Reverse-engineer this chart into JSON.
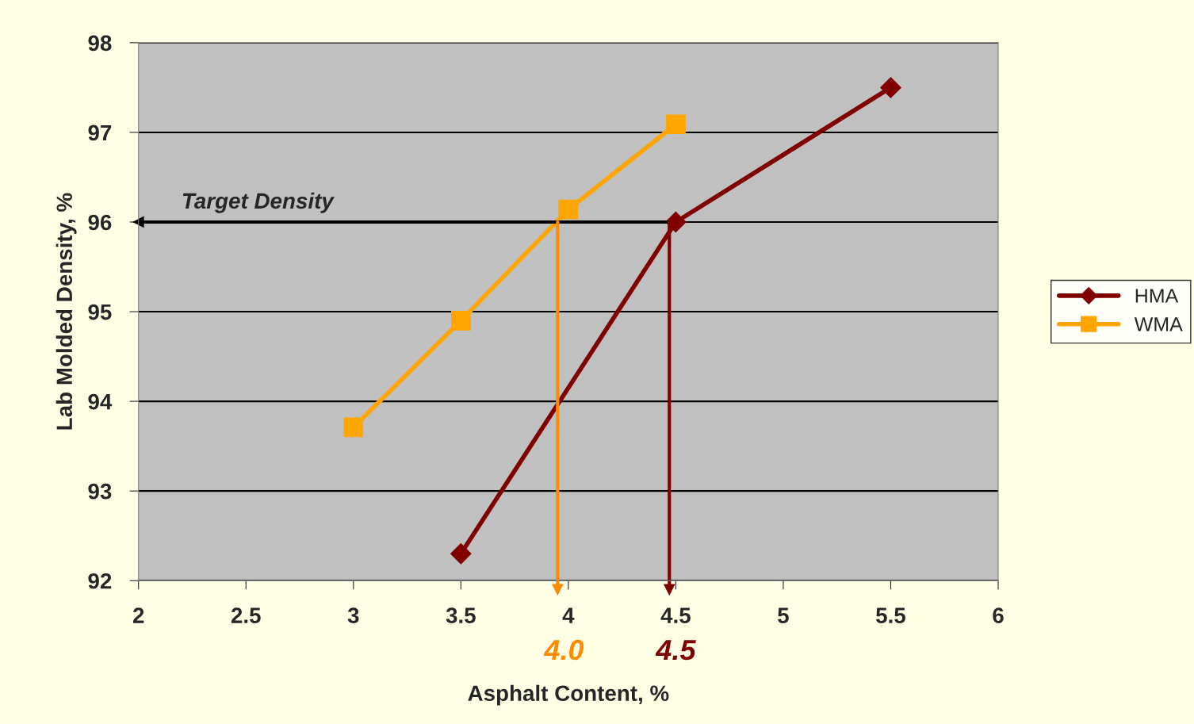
{
  "chart_data": {
    "type": "line",
    "xlabel": "Asphalt Content, %",
    "ylabel": "Lab Molded Density, %",
    "xlim": [
      2,
      6
    ],
    "xticks": [
      2,
      2.5,
      3,
      3.5,
      4,
      4.5,
      5,
      5.5,
      6
    ],
    "ylim": [
      92,
      98
    ],
    "yticks": [
      92,
      93,
      94,
      95,
      96,
      97,
      98
    ],
    "grid": "y",
    "legend": "right",
    "series": [
      {
        "name": "HMA",
        "color": "#800000",
        "marker": "diamond",
        "x": [
          3.5,
          4.5,
          5.5
        ],
        "values": [
          92.3,
          96.0,
          97.5
        ]
      },
      {
        "name": "WMA",
        "color": "#ffa500",
        "marker": "square",
        "x": [
          3,
          3.5,
          4,
          4.5
        ],
        "values": [
          93.71,
          94.9,
          96.14,
          97.09
        ]
      }
    ],
    "ref_lines": [
      {
        "axis": "y",
        "value": 96,
        "label": "Target Density",
        "color": "#000000"
      },
      {
        "axis": "x",
        "value": 3.95,
        "label": "4.0",
        "color": "#ff8c00"
      },
      {
        "axis": "x",
        "value": 4.47,
        "label": "4.5",
        "color": "#800000"
      }
    ]
  }
}
